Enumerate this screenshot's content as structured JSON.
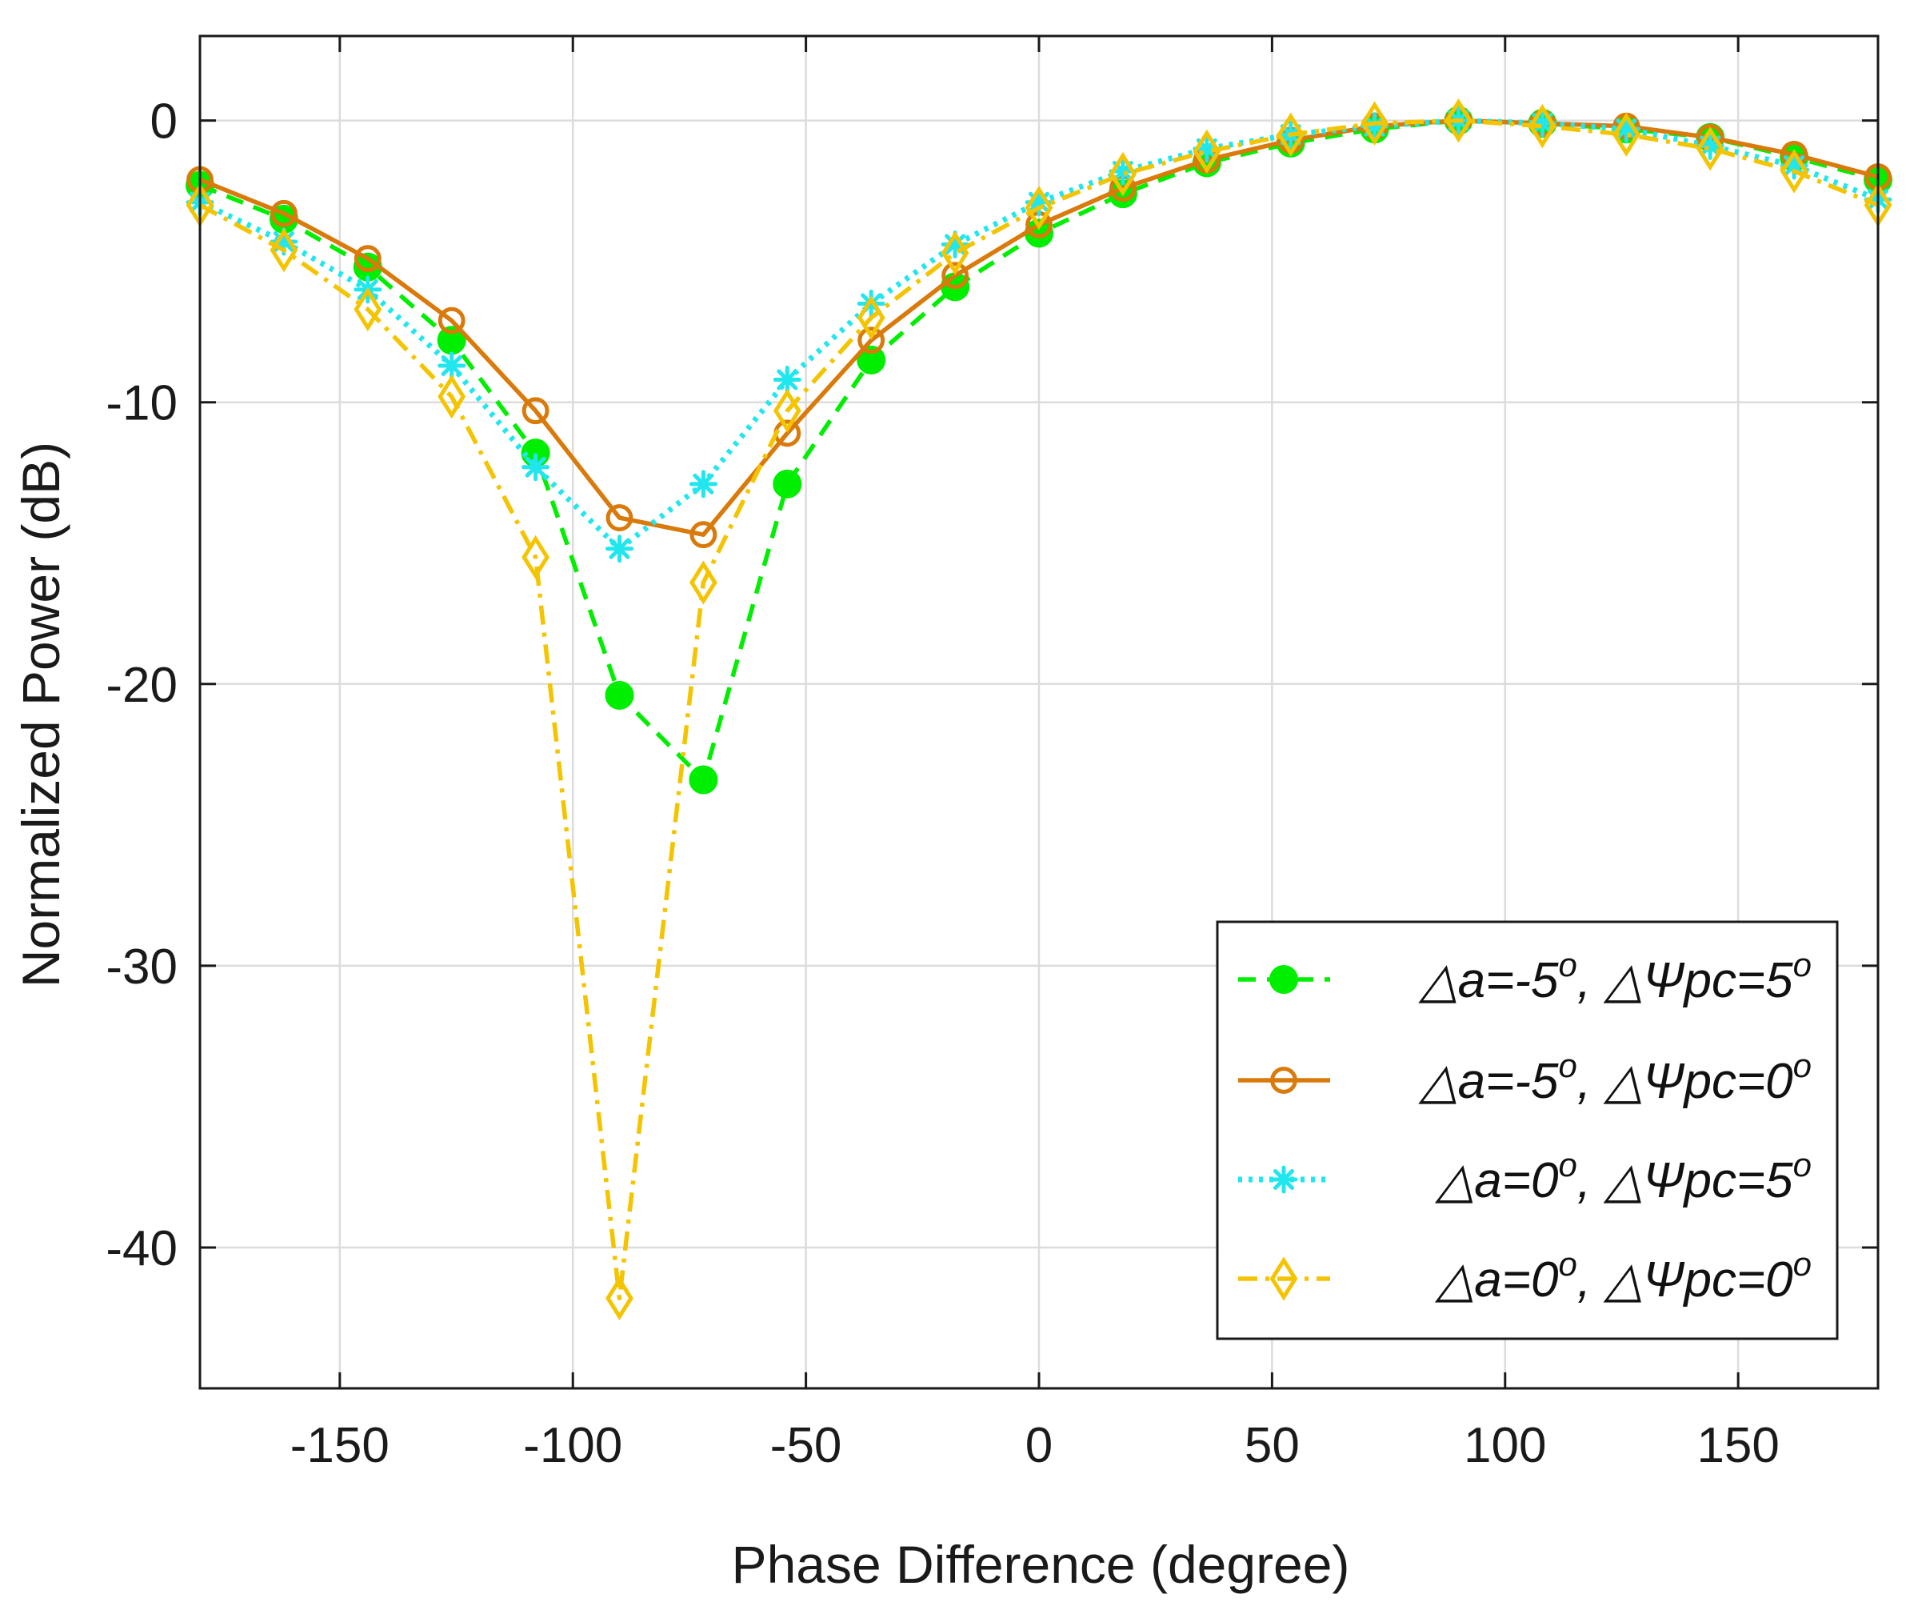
{
  "chart_data": {
    "type": "line",
    "title": "",
    "xlabel": "Phase Difference (degree)",
    "ylabel": "Normalized Power (dB)",
    "xlim": [
      -180,
      180
    ],
    "ylim": [
      -45,
      3
    ],
    "xticks": [
      -150,
      -100,
      -50,
      0,
      50,
      100,
      150
    ],
    "xtick_labels": [
      "-150",
      "-100",
      "-50",
      "0",
      "50",
      "100",
      "150"
    ],
    "yticks": [
      0,
      -10,
      -20,
      -30,
      -40
    ],
    "ytick_labels": [
      "0",
      "-10",
      "-20",
      "-30",
      "-40"
    ],
    "grid": true,
    "legend_position": "bottom-right",
    "x": [
      -180,
      -162,
      -144,
      -126,
      -108,
      -90,
      -72,
      -54,
      -36,
      -18,
      0,
      18,
      36,
      54,
      72,
      90,
      108,
      126,
      144,
      162,
      180
    ],
    "series": [
      {
        "name": "△a=-5ᴼ, △Ψpc=5ᴼ",
        "legend_parts": {
          "pre1": "△a=-5",
          "sup1": "o",
          "mid": ", △Ψpc=5",
          "sup2": "o"
        },
        "color": "#00ee00",
        "linestyle": "dashed",
        "marker": "filled-circle",
        "values": [
          -2.3,
          -3.5,
          -5.2,
          -7.8,
          -11.8,
          -20.4,
          -23.4,
          -12.9,
          -8.5,
          -5.9,
          -4.0,
          -2.6,
          -1.5,
          -0.8,
          -0.3,
          0.0,
          -0.1,
          -0.3,
          -0.6,
          -1.3,
          -2.1
        ]
      },
      {
        "name": "△a=-5ᴼ, △Ψpc=0ᴼ",
        "legend_parts": {
          "pre1": "△a=-5",
          "sup1": "o",
          "mid": ", △Ψpc=0",
          "sup2": "o"
        },
        "color": "#d97a0a",
        "linestyle": "solid",
        "marker": "open-circle",
        "values": [
          -2.1,
          -3.3,
          -4.9,
          -7.1,
          -10.3,
          -14.1,
          -14.7,
          -11.1,
          -7.8,
          -5.5,
          -3.7,
          -2.4,
          -1.4,
          -0.7,
          -0.2,
          0.0,
          -0.1,
          -0.2,
          -0.6,
          -1.2,
          -2.0
        ]
      },
      {
        "name": "△a=0ᴼ, △Ψpc=5ᴼ",
        "legend_parts": {
          "pre1": " △a=0",
          "sup1": "o",
          "mid": ", △Ψpc=5",
          "sup2": "o"
        },
        "color": "#22e6ee",
        "linestyle": "dotted",
        "marker": "asterisk",
        "values": [
          -2.9,
          -4.3,
          -6.0,
          -8.7,
          -12.3,
          -15.2,
          -12.9,
          -9.2,
          -6.5,
          -4.4,
          -2.9,
          -1.8,
          -1.0,
          -0.5,
          -0.2,
          0.0,
          -0.1,
          -0.3,
          -0.9,
          -1.6,
          -2.8
        ]
      },
      {
        "name": "△a=0ᴼ, △Ψpc=0ᴼ",
        "legend_parts": {
          "pre1": "△a=0",
          "sup1": "o",
          "mid": ", △Ψpc=0",
          "sup2": "o"
        },
        "color": "#f5c400",
        "linestyle": "dash-dot",
        "marker": "open-diamond",
        "values": [
          -3.0,
          -4.6,
          -6.7,
          -9.8,
          -15.5,
          -41.8,
          -16.4,
          -10.3,
          -7.0,
          -4.7,
          -3.1,
          -1.9,
          -1.1,
          -0.5,
          -0.1,
          0.0,
          -0.2,
          -0.5,
          -1.0,
          -1.8,
          -3.0
        ]
      }
    ]
  }
}
